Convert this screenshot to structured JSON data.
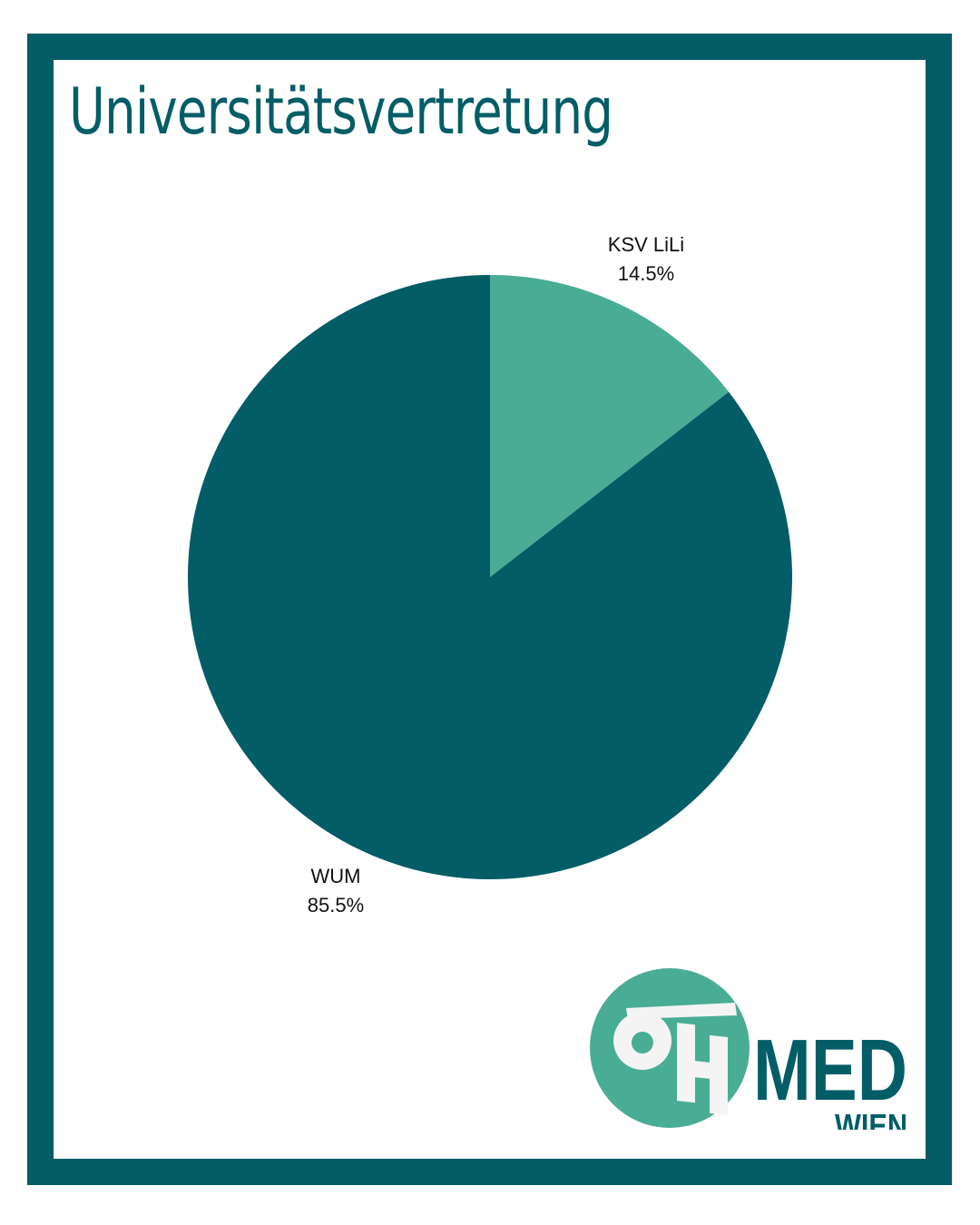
{
  "chart_data": {
    "type": "pie",
    "title": "Universitätsvertretung",
    "slices": [
      {
        "name": "KSV LiLi",
        "value": 14.5,
        "label": "14.5%",
        "color": "#49ad96"
      },
      {
        "name": "WUM",
        "value": 85.5,
        "label": "85.5%",
        "color": "#025d66"
      }
    ],
    "start_angle": "12 o'clock",
    "direction": "clockwise"
  },
  "logo": {
    "mark": "ÖH",
    "wordmark": "MED",
    "subtitle": "WIEN",
    "circle_color": "#49ad96",
    "text_color": "#025d66"
  },
  "colors": {
    "frame": "#025d66",
    "background": "#ffffff"
  }
}
